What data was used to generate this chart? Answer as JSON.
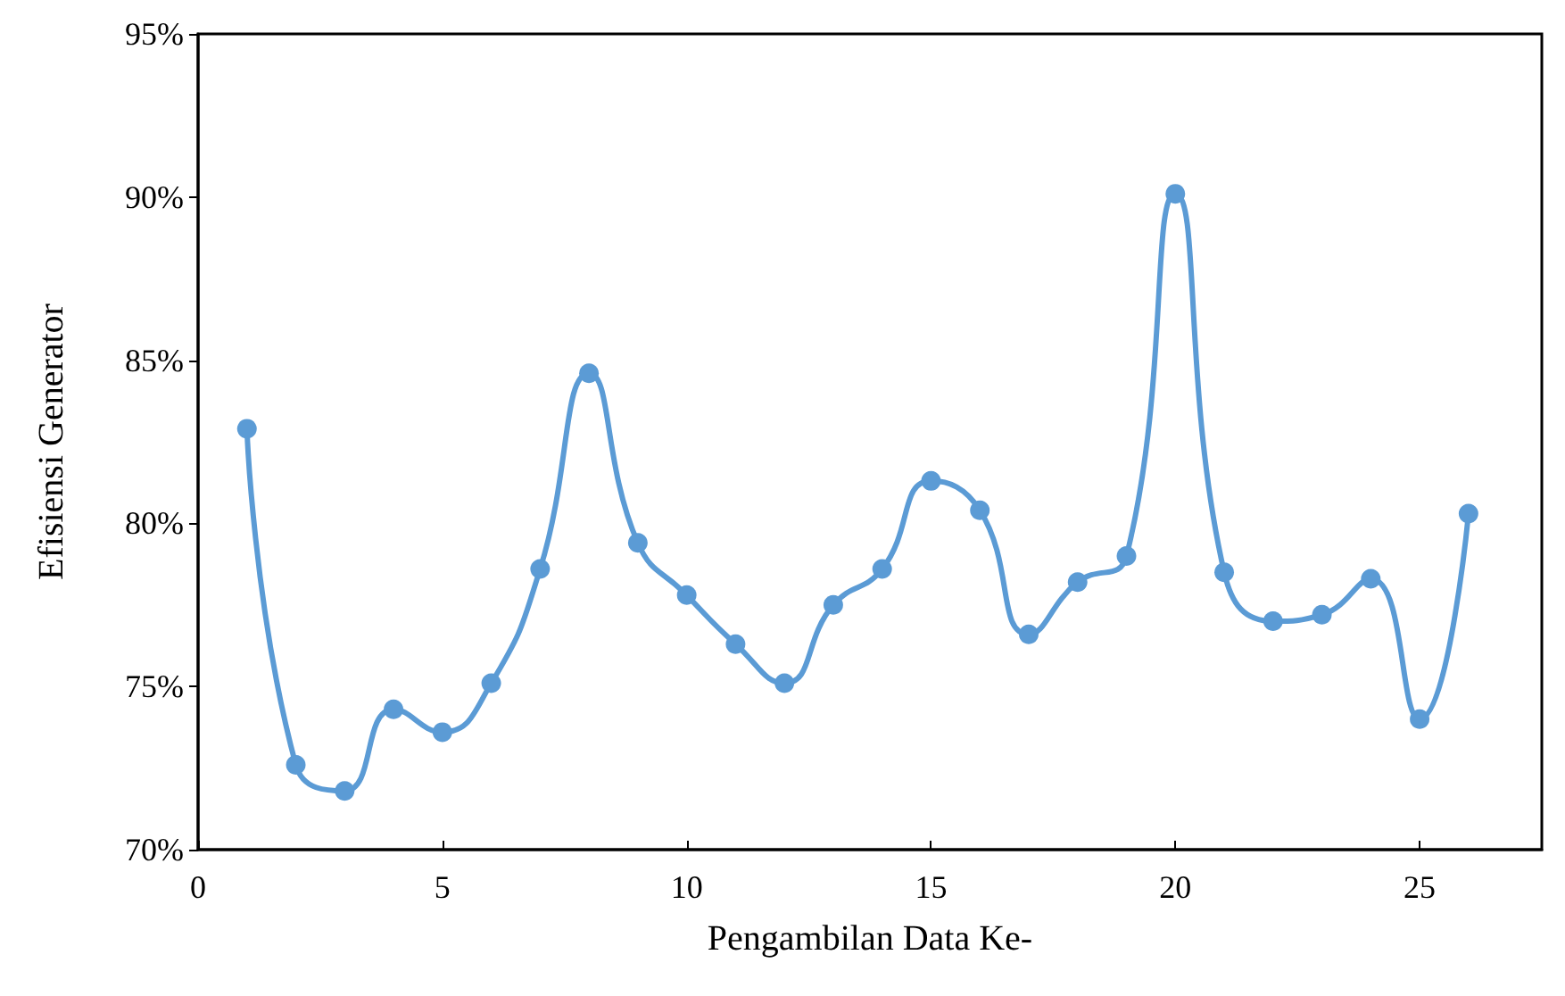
{
  "chart_data": {
    "type": "line",
    "xlabel": "Pengambilan Data Ke-",
    "ylabel": "Efisiensi Generator",
    "x": [
      1,
      2,
      3,
      4,
      5,
      6,
      7,
      8,
      9,
      10,
      11,
      12,
      13,
      14,
      15,
      16,
      17,
      18,
      19,
      20,
      21,
      22,
      23,
      24,
      25,
      26
    ],
    "series": [
      {
        "color": "#5b9bd5",
        "values": [
          82.9,
          72.6,
          71.8,
          74.3,
          73.6,
          75.1,
          78.6,
          84.6,
          79.4,
          77.8,
          76.3,
          75.1,
          77.5,
          78.6,
          81.3,
          80.4,
          76.6,
          78.2,
          79.0,
          90.1,
          78.5,
          77.0,
          77.2,
          78.3,
          74.0,
          80.3
        ]
      }
    ],
    "xlim": [
      0,
      27.5
    ],
    "xticks": [
      0,
      5,
      10,
      15,
      20,
      25
    ],
    "ylim": [
      70,
      95
    ],
    "yticks": [
      {
        "value": 70,
        "label": "70%"
      },
      {
        "value": 75,
        "label": "75%"
      },
      {
        "value": 80,
        "label": "80%"
      },
      {
        "value": 85,
        "label": "85%"
      },
      {
        "value": 90,
        "label": "90%"
      },
      {
        "value": 95,
        "label": "95%"
      }
    ],
    "grid": false,
    "marker": "circle",
    "line_style": "solid"
  }
}
